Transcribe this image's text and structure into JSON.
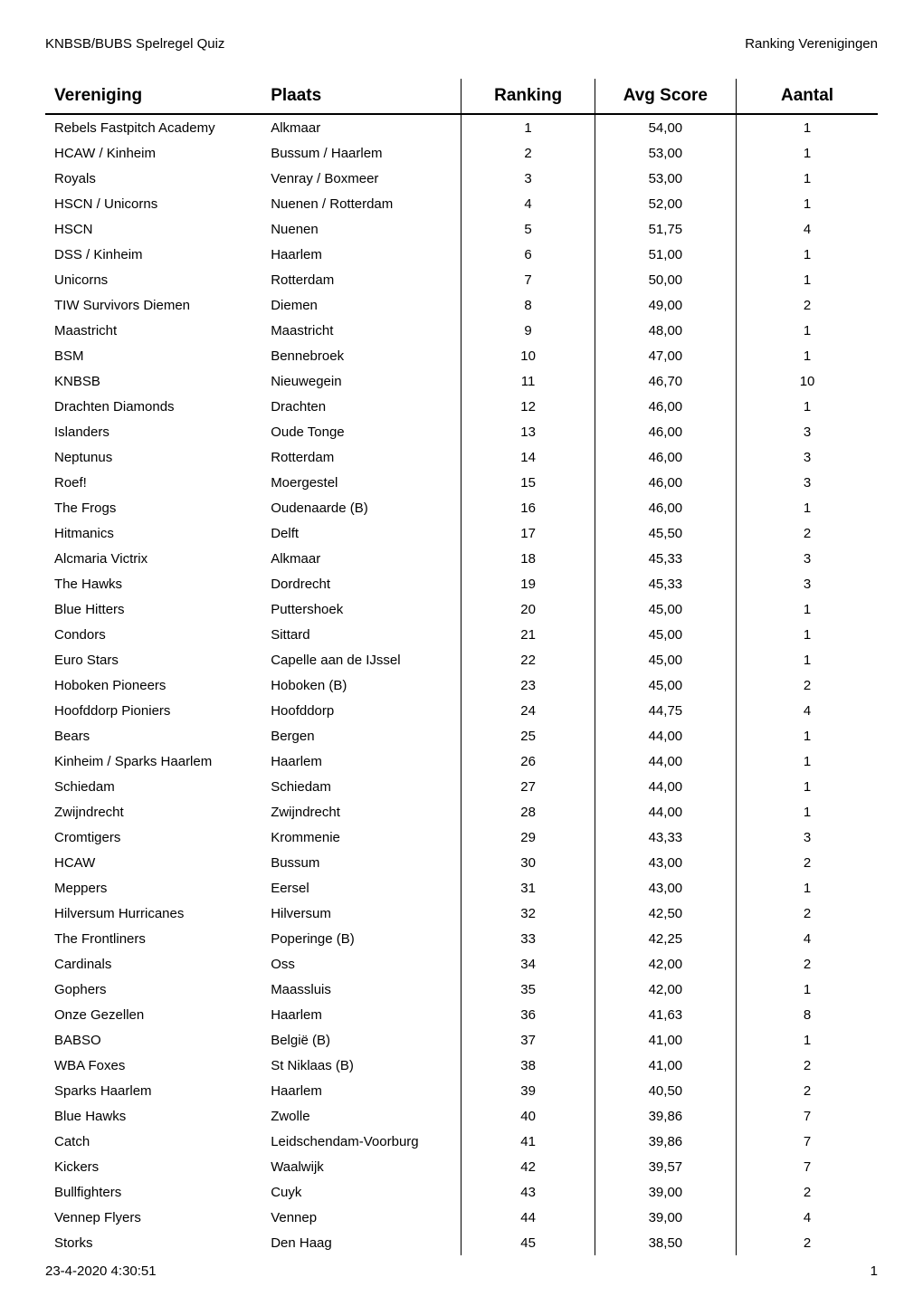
{
  "header": {
    "left": "KNBSB/BUBS Spelregel Quiz",
    "right": "Ranking Verenigingen"
  },
  "table": {
    "columns": {
      "vereniging": "Vereniging",
      "plaats": "Plaats",
      "ranking": "Ranking",
      "avgscore": "Avg Score",
      "aantal": "Aantal"
    },
    "rows": [
      {
        "vereniging": "Rebels Fastpitch Academy",
        "plaats": "Alkmaar",
        "ranking": "1",
        "avgscore": "54,00",
        "aantal": "1"
      },
      {
        "vereniging": "HCAW / Kinheim",
        "plaats": "Bussum / Haarlem",
        "ranking": "2",
        "avgscore": "53,00",
        "aantal": "1"
      },
      {
        "vereniging": "Royals",
        "plaats": "Venray / Boxmeer",
        "ranking": "3",
        "avgscore": "53,00",
        "aantal": "1"
      },
      {
        "vereniging": "HSCN / Unicorns",
        "plaats": "Nuenen / Rotterdam",
        "ranking": "4",
        "avgscore": "52,00",
        "aantal": "1"
      },
      {
        "vereniging": "HSCN",
        "plaats": "Nuenen",
        "ranking": "5",
        "avgscore": "51,75",
        "aantal": "4"
      },
      {
        "vereniging": "DSS / Kinheim",
        "plaats": "Haarlem",
        "ranking": "6",
        "avgscore": "51,00",
        "aantal": "1"
      },
      {
        "vereniging": "Unicorns",
        "plaats": "Rotterdam",
        "ranking": "7",
        "avgscore": "50,00",
        "aantal": "1"
      },
      {
        "vereniging": "TIW Survivors Diemen",
        "plaats": "Diemen",
        "ranking": "8",
        "avgscore": "49,00",
        "aantal": "2"
      },
      {
        "vereniging": "Maastricht",
        "plaats": "Maastricht",
        "ranking": "9",
        "avgscore": "48,00",
        "aantal": "1"
      },
      {
        "vereniging": "BSM",
        "plaats": "Bennebroek",
        "ranking": "10",
        "avgscore": "47,00",
        "aantal": "1"
      },
      {
        "vereniging": "KNBSB",
        "plaats": "Nieuwegein",
        "ranking": "11",
        "avgscore": "46,70",
        "aantal": "10"
      },
      {
        "vereniging": "Drachten Diamonds",
        "plaats": "Drachten",
        "ranking": "12",
        "avgscore": "46,00",
        "aantal": "1"
      },
      {
        "vereniging": "Islanders",
        "plaats": "Oude Tonge",
        "ranking": "13",
        "avgscore": "46,00",
        "aantal": "3"
      },
      {
        "vereniging": "Neptunus",
        "plaats": "Rotterdam",
        "ranking": "14",
        "avgscore": "46,00",
        "aantal": "3"
      },
      {
        "vereniging": "Roef!",
        "plaats": "Moergestel",
        "ranking": "15",
        "avgscore": "46,00",
        "aantal": "3"
      },
      {
        "vereniging": "The Frogs",
        "plaats": "Oudenaarde (B)",
        "ranking": "16",
        "avgscore": "46,00",
        "aantal": "1"
      },
      {
        "vereniging": "Hitmanics",
        "plaats": "Delft",
        "ranking": "17",
        "avgscore": "45,50",
        "aantal": "2"
      },
      {
        "vereniging": "Alcmaria Victrix",
        "plaats": "Alkmaar",
        "ranking": "18",
        "avgscore": "45,33",
        "aantal": "3"
      },
      {
        "vereniging": "The Hawks",
        "plaats": "Dordrecht",
        "ranking": "19",
        "avgscore": "45,33",
        "aantal": "3"
      },
      {
        "vereniging": "Blue Hitters",
        "plaats": "Puttershoek",
        "ranking": "20",
        "avgscore": "45,00",
        "aantal": "1"
      },
      {
        "vereniging": "Condors",
        "plaats": "Sittard",
        "ranking": "21",
        "avgscore": "45,00",
        "aantal": "1"
      },
      {
        "vereniging": "Euro Stars",
        "plaats": "Capelle aan de IJssel",
        "ranking": "22",
        "avgscore": "45,00",
        "aantal": "1"
      },
      {
        "vereniging": "Hoboken Pioneers",
        "plaats": "Hoboken (B)",
        "ranking": "23",
        "avgscore": "45,00",
        "aantal": "2"
      },
      {
        "vereniging": "Hoofddorp Pioniers",
        "plaats": "Hoofddorp",
        "ranking": "24",
        "avgscore": "44,75",
        "aantal": "4"
      },
      {
        "vereniging": "Bears",
        "plaats": "Bergen",
        "ranking": "25",
        "avgscore": "44,00",
        "aantal": "1"
      },
      {
        "vereniging": "Kinheim / Sparks Haarlem",
        "plaats": "Haarlem",
        "ranking": "26",
        "avgscore": "44,00",
        "aantal": "1"
      },
      {
        "vereniging": "Schiedam",
        "plaats": "Schiedam",
        "ranking": "27",
        "avgscore": "44,00",
        "aantal": "1"
      },
      {
        "vereniging": "Zwijndrecht",
        "plaats": "Zwijndrecht",
        "ranking": "28",
        "avgscore": "44,00",
        "aantal": "1"
      },
      {
        "vereniging": "Cromtigers",
        "plaats": "Krommenie",
        "ranking": "29",
        "avgscore": "43,33",
        "aantal": "3"
      },
      {
        "vereniging": "HCAW",
        "plaats": "Bussum",
        "ranking": "30",
        "avgscore": "43,00",
        "aantal": "2"
      },
      {
        "vereniging": "Meppers",
        "plaats": "Eersel",
        "ranking": "31",
        "avgscore": "43,00",
        "aantal": "1"
      },
      {
        "vereniging": "Hilversum Hurricanes",
        "plaats": "Hilversum",
        "ranking": "32",
        "avgscore": "42,50",
        "aantal": "2"
      },
      {
        "vereniging": "The Frontliners",
        "plaats": "Poperinge (B)",
        "ranking": "33",
        "avgscore": "42,25",
        "aantal": "4"
      },
      {
        "vereniging": "Cardinals",
        "plaats": "Oss",
        "ranking": "34",
        "avgscore": "42,00",
        "aantal": "2"
      },
      {
        "vereniging": "Gophers",
        "plaats": "Maassluis",
        "ranking": "35",
        "avgscore": "42,00",
        "aantal": "1"
      },
      {
        "vereniging": "Onze Gezellen",
        "plaats": "Haarlem",
        "ranking": "36",
        "avgscore": "41,63",
        "aantal": "8"
      },
      {
        "vereniging": "BABSO",
        "plaats": "België (B)",
        "ranking": "37",
        "avgscore": "41,00",
        "aantal": "1"
      },
      {
        "vereniging": "WBA Foxes",
        "plaats": "St Niklaas (B)",
        "ranking": "38",
        "avgscore": "41,00",
        "aantal": "2"
      },
      {
        "vereniging": "Sparks Haarlem",
        "plaats": "Haarlem",
        "ranking": "39",
        "avgscore": "40,50",
        "aantal": "2"
      },
      {
        "vereniging": "Blue Hawks",
        "plaats": "Zwolle",
        "ranking": "40",
        "avgscore": "39,86",
        "aantal": "7"
      },
      {
        "vereniging": "Catch",
        "plaats": "Leidschendam-Voorburg",
        "ranking": "41",
        "avgscore": "39,86",
        "aantal": "7"
      },
      {
        "vereniging": "Kickers",
        "plaats": "Waalwijk",
        "ranking": "42",
        "avgscore": "39,57",
        "aantal": "7"
      },
      {
        "vereniging": "Bullfighters",
        "plaats": "Cuyk",
        "ranking": "43",
        "avgscore": "39,00",
        "aantal": "2"
      },
      {
        "vereniging": "Vennep Flyers",
        "plaats": "Vennep",
        "ranking": "44",
        "avgscore": "39,00",
        "aantal": "4"
      },
      {
        "vereniging": "Storks",
        "plaats": "Den Haag",
        "ranking": "45",
        "avgscore": "38,50",
        "aantal": "2"
      }
    ]
  },
  "footer": {
    "timestamp": "23-4-2020 4:30:51",
    "page": "1"
  },
  "styling": {
    "background_color": "#ffffff",
    "text_color": "#000000",
    "header_border_color": "#000000",
    "column_border_color": "#000000",
    "header_fontsize": 19,
    "body_fontsize": 15,
    "footer_fontsize": 15
  }
}
